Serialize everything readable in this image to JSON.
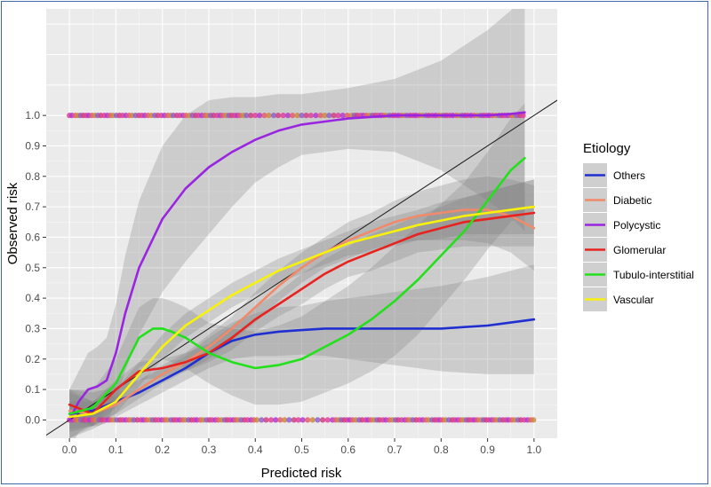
{
  "chart_data": {
    "type": "line",
    "xlabel": "Predicted risk",
    "ylabel": "Observed risk",
    "xlim": [
      -0.05,
      1.05
    ],
    "ylim": [
      -0.06,
      1.35
    ],
    "x_ticks": [
      "0.0",
      "0.1",
      "0.2",
      "0.3",
      "0.4",
      "0.5",
      "0.6",
      "0.7",
      "0.8",
      "0.9",
      "1.0"
    ],
    "y_ticks": [
      "0.0",
      "0.1",
      "0.2",
      "0.3",
      "0.4",
      "0.5",
      "0.6",
      "0.7",
      "0.8",
      "0.9",
      "1.0"
    ],
    "grid": true,
    "legend_title": "Etiology",
    "legend_position": "right",
    "reference_line": {
      "x": [
        -0.05,
        1.05
      ],
      "y": [
        -0.05,
        1.05
      ],
      "color": "#1a1a1a"
    },
    "rug_points": {
      "y_values": [
        0,
        1
      ],
      "colors": [
        "#e0409a",
        "#b03ad0",
        "#e85a6a",
        "#c98a40",
        "#8e5fd0",
        "#d04080"
      ]
    },
    "series": [
      {
        "name": "Others",
        "color": "#1f2fd0",
        "x": [
          0.0,
          0.05,
          0.1,
          0.15,
          0.2,
          0.25,
          0.3,
          0.35,
          0.4,
          0.45,
          0.5,
          0.55,
          0.6,
          0.65,
          0.7,
          0.75,
          0.8,
          0.85,
          0.9,
          0.95,
          1.0
        ],
        "y": [
          0.02,
          0.03,
          0.06,
          0.09,
          0.13,
          0.17,
          0.22,
          0.26,
          0.28,
          0.29,
          0.295,
          0.3,
          0.3,
          0.3,
          0.3,
          0.3,
          0.3,
          0.305,
          0.31,
          0.32,
          0.33
        ],
        "band": [
          0.08,
          0.06,
          0.05,
          0.04,
          0.04,
          0.04,
          0.05,
          0.06,
          0.07,
          0.08,
          0.08,
          0.09,
          0.1,
          0.11,
          0.12,
          0.13,
          0.14,
          0.15,
          0.16,
          0.17,
          0.18
        ]
      },
      {
        "name": "Diabetic",
        "color": "#f08a6a",
        "x": [
          0.0,
          0.05,
          0.1,
          0.15,
          0.2,
          0.25,
          0.3,
          0.35,
          0.4,
          0.45,
          0.5,
          0.55,
          0.6,
          0.65,
          0.7,
          0.75,
          0.8,
          0.85,
          0.9,
          0.95,
          1.0
        ],
        "y": [
          0.03,
          0.02,
          0.05,
          0.1,
          0.15,
          0.19,
          0.24,
          0.3,
          0.37,
          0.44,
          0.5,
          0.55,
          0.59,
          0.62,
          0.65,
          0.67,
          0.68,
          0.69,
          0.69,
          0.67,
          0.63
        ],
        "band": [
          0.06,
          0.04,
          0.03,
          0.03,
          0.03,
          0.03,
          0.04,
          0.04,
          0.05,
          0.05,
          0.05,
          0.05,
          0.06,
          0.06,
          0.07,
          0.08,
          0.09,
          0.1,
          0.11,
          0.12,
          0.14
        ]
      },
      {
        "name": "Polycystic",
        "color": "#9a25e0",
        "x": [
          0.0,
          0.02,
          0.04,
          0.06,
          0.08,
          0.1,
          0.12,
          0.15,
          0.2,
          0.25,
          0.3,
          0.35,
          0.4,
          0.45,
          0.5,
          0.6,
          0.7,
          0.8,
          0.9,
          0.95,
          0.98
        ],
        "y": [
          0.0,
          0.06,
          0.1,
          0.11,
          0.13,
          0.22,
          0.35,
          0.5,
          0.66,
          0.76,
          0.83,
          0.88,
          0.92,
          0.95,
          0.97,
          0.99,
          1.0,
          1.0,
          1.0,
          1.005,
          1.01
        ],
        "band": [
          0.1,
          0.1,
          0.12,
          0.13,
          0.14,
          0.16,
          0.19,
          0.22,
          0.24,
          0.24,
          0.22,
          0.18,
          0.14,
          0.12,
          0.1,
          0.1,
          0.12,
          0.18,
          0.28,
          0.34,
          0.39
        ]
      },
      {
        "name": "Glomerular",
        "color": "#e8231f",
        "x": [
          0.0,
          0.05,
          0.1,
          0.15,
          0.2,
          0.25,
          0.3,
          0.35,
          0.4,
          0.45,
          0.5,
          0.55,
          0.6,
          0.65,
          0.7,
          0.75,
          0.8,
          0.85,
          0.9,
          0.95,
          1.0
        ],
        "y": [
          0.05,
          0.02,
          0.1,
          0.16,
          0.17,
          0.19,
          0.22,
          0.27,
          0.33,
          0.38,
          0.43,
          0.48,
          0.52,
          0.55,
          0.58,
          0.61,
          0.63,
          0.65,
          0.66,
          0.67,
          0.68
        ],
        "band": [
          0.05,
          0.04,
          0.03,
          0.03,
          0.03,
          0.03,
          0.03,
          0.04,
          0.04,
          0.04,
          0.05,
          0.05,
          0.05,
          0.06,
          0.06,
          0.06,
          0.07,
          0.08,
          0.09,
          0.1,
          0.11
        ]
      },
      {
        "name": "Tubulo-interstitial",
        "color": "#22e01a",
        "x": [
          0.0,
          0.05,
          0.1,
          0.15,
          0.18,
          0.2,
          0.22,
          0.25,
          0.3,
          0.35,
          0.4,
          0.45,
          0.5,
          0.55,
          0.6,
          0.65,
          0.7,
          0.75,
          0.8,
          0.85,
          0.9,
          0.95,
          0.98
        ],
        "y": [
          0.02,
          0.04,
          0.12,
          0.27,
          0.3,
          0.3,
          0.29,
          0.27,
          0.22,
          0.19,
          0.17,
          0.18,
          0.2,
          0.24,
          0.28,
          0.33,
          0.39,
          0.46,
          0.54,
          0.62,
          0.72,
          0.82,
          0.86
        ],
        "band": [
          0.08,
          0.06,
          0.08,
          0.1,
          0.1,
          0.1,
          0.1,
          0.1,
          0.1,
          0.11,
          0.12,
          0.13,
          0.14,
          0.15,
          0.16,
          0.17,
          0.18,
          0.18,
          0.17,
          0.16,
          0.16,
          0.17,
          0.18
        ]
      },
      {
        "name": "Vascular",
        "color": "#f8f20a",
        "x": [
          0.0,
          0.05,
          0.1,
          0.15,
          0.2,
          0.25,
          0.3,
          0.35,
          0.4,
          0.45,
          0.5,
          0.55,
          0.6,
          0.65,
          0.7,
          0.75,
          0.8,
          0.85,
          0.9,
          0.95,
          1.0
        ],
        "y": [
          0.01,
          0.02,
          0.06,
          0.15,
          0.24,
          0.31,
          0.36,
          0.41,
          0.45,
          0.49,
          0.52,
          0.55,
          0.58,
          0.6,
          0.62,
          0.64,
          0.655,
          0.67,
          0.68,
          0.69,
          0.7
        ],
        "band": [
          0.05,
          0.04,
          0.04,
          0.04,
          0.04,
          0.04,
          0.04,
          0.04,
          0.04,
          0.04,
          0.04,
          0.04,
          0.04,
          0.05,
          0.05,
          0.05,
          0.06,
          0.06,
          0.07,
          0.08,
          0.09
        ]
      }
    ]
  }
}
